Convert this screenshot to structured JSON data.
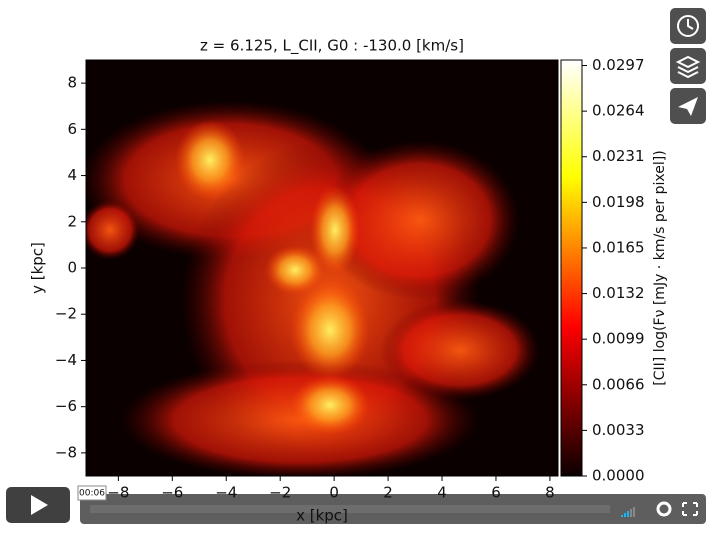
{
  "chart_data": {
    "type": "heatmap",
    "title": "z = 6.125, L_CII, G0 : -130.0 [km/s]",
    "xlabel": "x [kpc]",
    "ylabel": "y [kpc]",
    "colorbar_label": "[CII] log(Fν [mJy · km/s per pixel])",
    "colormap": "hot",
    "xlim": [
      -9.2,
      8.3
    ],
    "ylim": [
      -9,
      9
    ],
    "xticks": [
      {
        "value": -8,
        "label": "−8"
      },
      {
        "value": -6,
        "label": "−6"
      },
      {
        "value": -4,
        "label": "−4"
      },
      {
        "value": -2,
        "label": "−2"
      },
      0,
      2,
      4,
      6,
      8
    ],
    "yticks": [
      {
        "value": -8,
        "label": "−8"
      },
      {
        "value": -6,
        "label": "−6"
      },
      {
        "value": -4,
        "label": "−4"
      },
      {
        "value": -2,
        "label": "−2"
      },
      0,
      2,
      4,
      6,
      8
    ],
    "clim": [
      0,
      0.0301
    ],
    "cticks": [
      {
        "value": 0,
        "label": "0.0000"
      },
      {
        "value": 0.0033,
        "label": "0.0033"
      },
      {
        "value": 0.0066,
        "label": "0.0066"
      },
      {
        "value": 0.0099,
        "label": "0.0099"
      },
      {
        "value": 0.0132,
        "label": "0.0132"
      },
      {
        "value": 0.0165,
        "label": "0.0165"
      },
      {
        "value": 0.0198,
        "label": "0.0198"
      },
      {
        "value": 0.0231,
        "label": "0.0231"
      },
      {
        "value": 0.0264,
        "label": "0.0264"
      },
      {
        "value": 0.0297,
        "label": "0.0297"
      }
    ]
  },
  "player": {
    "time": "00:06"
  }
}
